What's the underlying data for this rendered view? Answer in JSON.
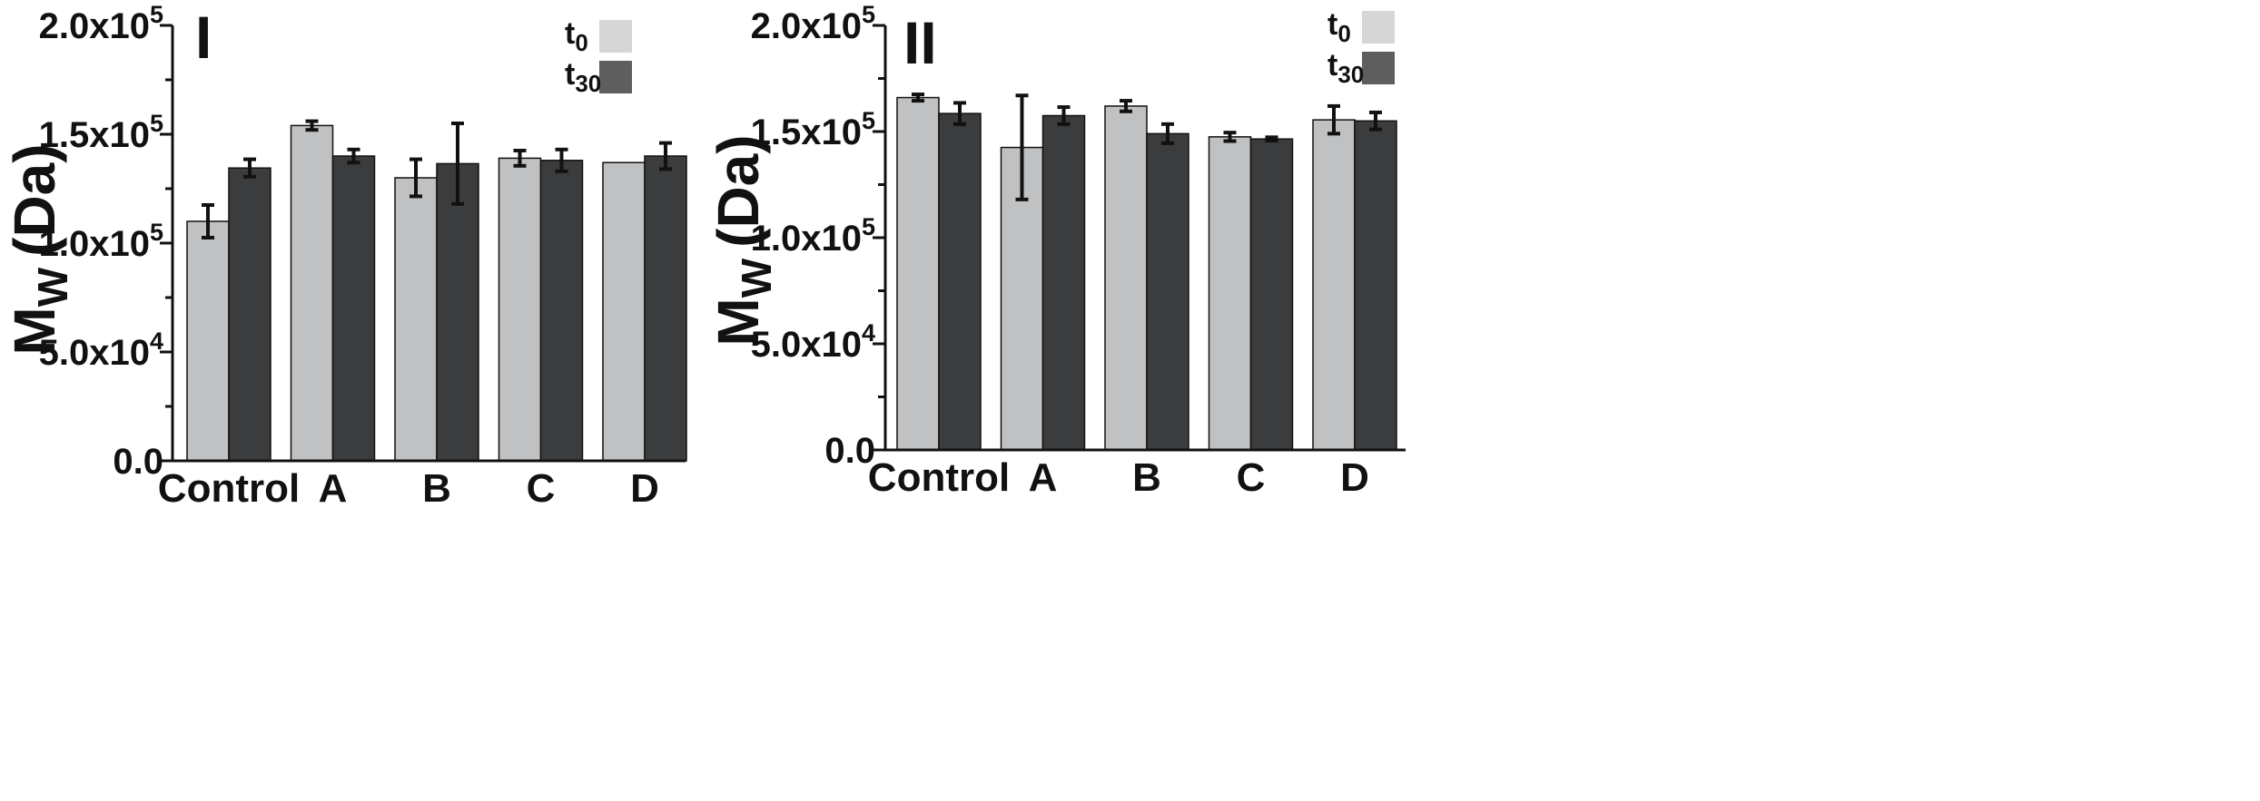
{
  "charts": [
    {
      "panel_label": "I",
      "ylabel_main": "M",
      "ylabel_sub": "W",
      "ylabel_unit": "(Da)",
      "ytick_labels": [
        {
          "mant": "0.0",
          "exp": ""
        },
        {
          "mant": "5.0x10",
          "exp": "4"
        },
        {
          "mant": "1.0x10",
          "exp": "5"
        },
        {
          "mant": "1.5x10",
          "exp": "5"
        },
        {
          "mant": "2.0x10",
          "exp": "5"
        }
      ],
      "legend": [
        {
          "main": "t",
          "sub": "0"
        },
        {
          "main": "t",
          "sub": "30"
        }
      ]
    },
    {
      "panel_label": "II",
      "ylabel_main": "M",
      "ylabel_sub": "W",
      "ylabel_unit": "(Da)",
      "ytick_labels": [
        {
          "mant": "0.0",
          "exp": ""
        },
        {
          "mant": "5.0x10",
          "exp": "4"
        },
        {
          "mant": "1.0x10",
          "exp": "5"
        },
        {
          "mant": "1.5x10",
          "exp": "5"
        },
        {
          "mant": "2.0x10",
          "exp": "5"
        }
      ],
      "legend": [
        {
          "main": "t",
          "sub": "0"
        },
        {
          "main": "t",
          "sub": "30"
        }
      ]
    }
  ],
  "chart_data": [
    {
      "type": "bar",
      "title": "I",
      "xlabel": "",
      "ylabel": "Mw (Da)",
      "ylim": [
        0,
        200000
      ],
      "yticks": [
        0,
        50000,
        100000,
        150000,
        200000
      ],
      "categories": [
        "Control",
        "A",
        "B",
        "C",
        "D"
      ],
      "series": [
        {
          "name": "t0",
          "color": "#c0c1c3",
          "values": [
            110000,
            154000,
            130000,
            139000,
            137000
          ],
          "errors": [
            7500,
            2000,
            8500,
            3500,
            0
          ]
        },
        {
          "name": "t30",
          "color": "#3b3c3e",
          "values": [
            134500,
            140000,
            136500,
            138000,
            140000
          ],
          "errors": [
            4000,
            3000,
            18500,
            5000,
            6000
          ]
        }
      ],
      "legend_position": "top-right"
    },
    {
      "type": "bar",
      "title": "II",
      "xlabel": "",
      "ylabel": "Mw (Da)",
      "ylim": [
        0,
        200000
      ],
      "yticks": [
        0,
        50000,
        100000,
        150000,
        200000
      ],
      "categories": [
        "Control",
        "A",
        "B",
        "C",
        "D"
      ],
      "series": [
        {
          "name": "t0",
          "color": "#c0c1c3",
          "values": [
            166000,
            142500,
            162000,
            147500,
            155500
          ],
          "errors": [
            1500,
            24500,
            2500,
            2000,
            6500
          ]
        },
        {
          "name": "t30",
          "color": "#3b3c3e",
          "values": [
            158500,
            157500,
            149000,
            146500,
            155000
          ],
          "errors": [
            5000,
            4000,
            4500,
            800,
            4000
          ]
        }
      ],
      "legend_position": "top-right"
    }
  ],
  "colors": {
    "t0": "#c0c1c3",
    "t30": "#3b3c3e",
    "legend_t0": "#d6d6d6",
    "legend_t30": "#5e5e5e",
    "axis": "#111111"
  }
}
